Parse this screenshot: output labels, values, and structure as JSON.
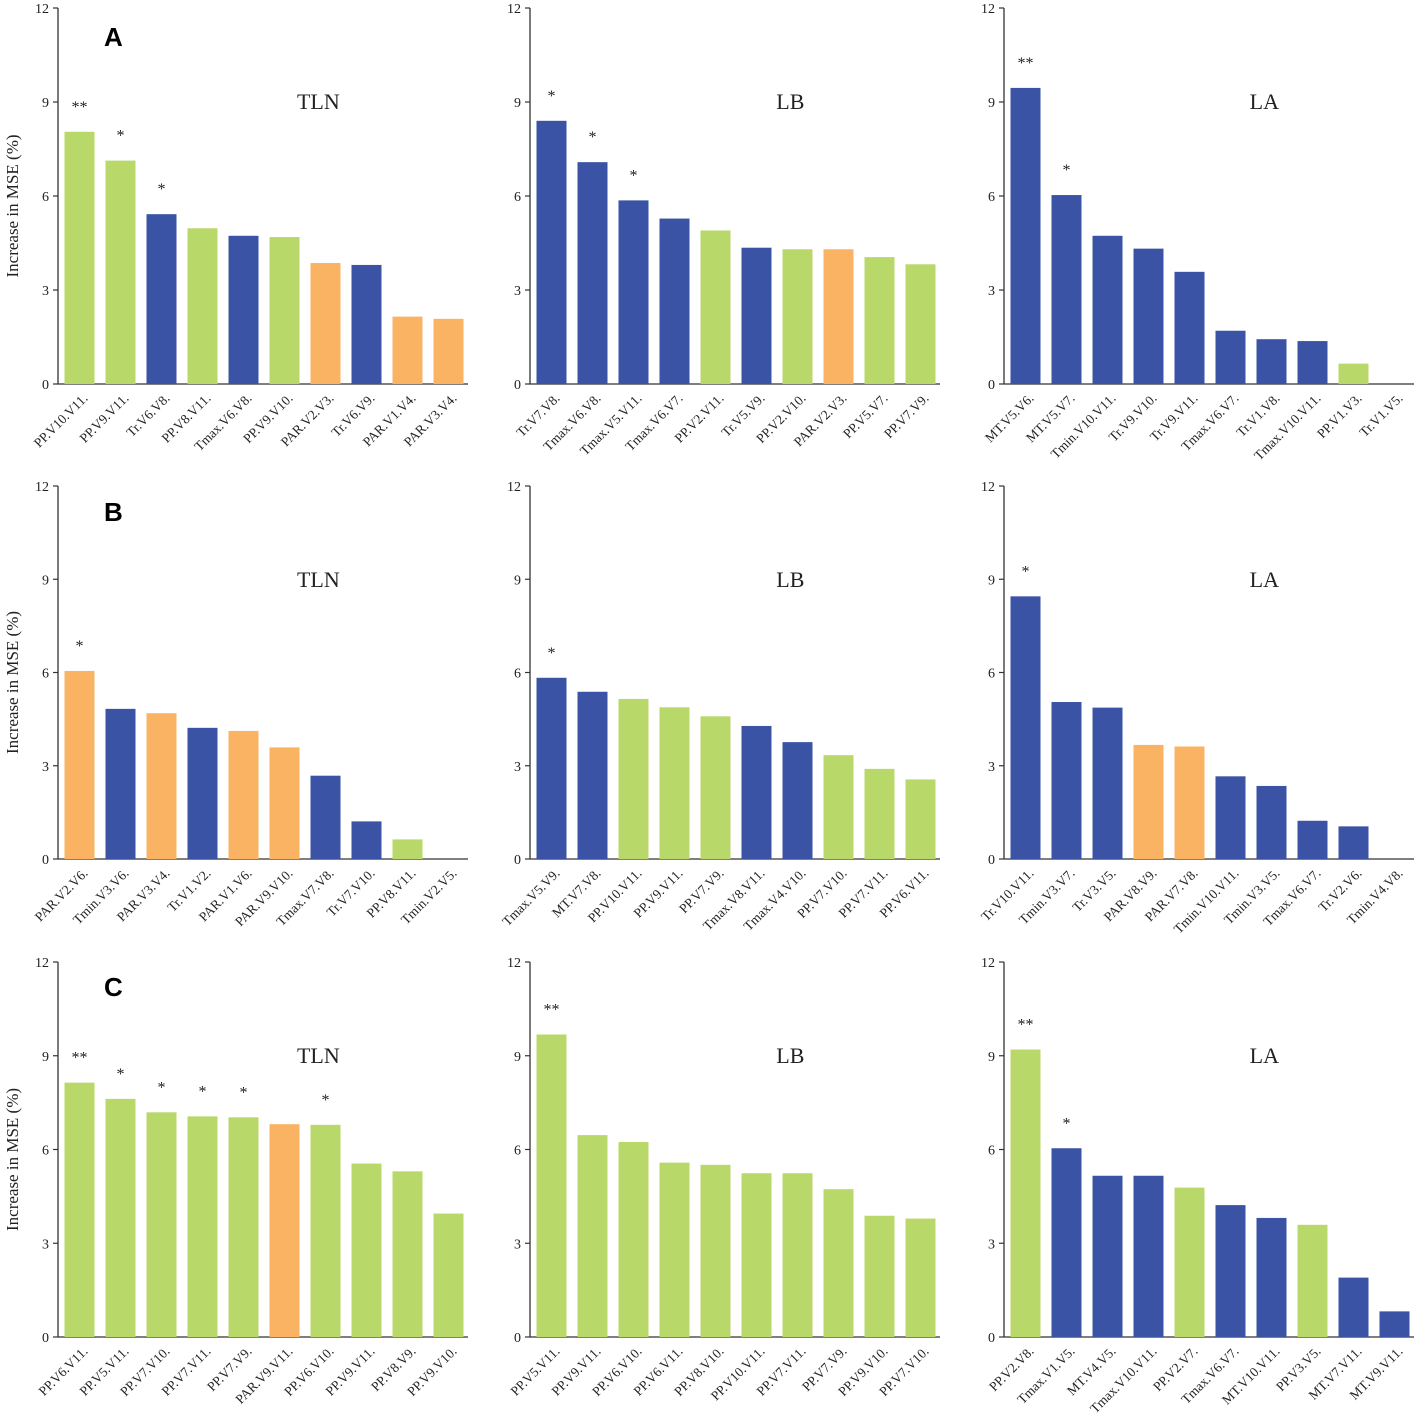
{
  "colors": {
    "green": "#b8d86a",
    "blue": "#3a53a4",
    "orange": "#f9b363"
  },
  "figure": {
    "ylabel": "Increase in MSE (%)",
    "row_labels": [
      "A",
      "B",
      "C"
    ]
  },
  "chart_data": [
    {
      "type": "bar",
      "row": "A",
      "title": "TLN",
      "ylabel": "Increase in MSE (%)",
      "ylim": [
        0,
        12
      ],
      "yticks": [
        0,
        3,
        6,
        9,
        12
      ],
      "categories": [
        "PP.V10.V11.",
        "PP.V9.V11.",
        "Tr.V6.V8.",
        "PP.V8.V11.",
        "Tmax.V6.V8.",
        "PP.V9.V10.",
        "PAR.V2.V3.",
        "Tr.V6.V9.",
        "PAR.V1.V4.",
        "PAR.V3.V4."
      ],
      "values": [
        8.05,
        7.13,
        5.42,
        4.97,
        4.73,
        4.69,
        3.86,
        3.8,
        2.15,
        2.08
      ],
      "colors": [
        "green",
        "green",
        "blue",
        "green",
        "blue",
        "green",
        "orange",
        "blue",
        "orange",
        "orange"
      ],
      "significance": [
        "**",
        "*",
        "*",
        "",
        "",
        "",
        "",
        "",
        "",
        ""
      ]
    },
    {
      "type": "bar",
      "row": "A",
      "title": "LB",
      "ylabel": "",
      "ylim": [
        0,
        12
      ],
      "yticks": [
        0,
        3,
        6,
        9,
        12
      ],
      "categories": [
        "Tr.V7.V8.",
        "Tmax.V6.V8.",
        "Tmax.V5.V11.",
        "Tmax.V6.V7.",
        "PP.V2.V11.",
        "Tr.V5.V9.",
        "PP.V2.V10.",
        "PAR.V2.V3.",
        "PP.V5.V7.",
        "PP.V7.V9."
      ],
      "values": [
        8.4,
        7.08,
        5.86,
        5.28,
        4.9,
        4.35,
        4.3,
        4.3,
        4.05,
        3.82
      ],
      "colors": [
        "blue",
        "blue",
        "blue",
        "blue",
        "green",
        "blue",
        "green",
        "orange",
        "green",
        "green"
      ],
      "significance": [
        "*",
        "*",
        "*",
        "",
        "",
        "",
        "",
        "",
        "",
        ""
      ]
    },
    {
      "type": "bar",
      "row": "A",
      "title": "LA",
      "ylabel": "",
      "ylim": [
        0,
        12
      ],
      "yticks": [
        0,
        3,
        6,
        9,
        12
      ],
      "categories": [
        "MT.V5.V6.",
        "MT.V5.V7.",
        "Tmin.V10.V11.",
        "Tr.V9.V10.",
        "Tr.V9.V11.",
        "Tmax.V6.V7.",
        "Tr.V1.V8.",
        "Tmax.V10.V11.",
        "PP.V1.V3.",
        "Tr.V1.V5."
      ],
      "values": [
        9.45,
        6.03,
        4.73,
        4.32,
        3.58,
        1.7,
        1.43,
        1.37,
        0.65,
        0.0
      ],
      "colors": [
        "blue",
        "blue",
        "blue",
        "blue",
        "blue",
        "blue",
        "blue",
        "blue",
        "green",
        "blue"
      ],
      "significance": [
        "**",
        "*",
        "",
        "",
        "",
        "",
        "",
        "",
        "",
        ""
      ]
    },
    {
      "type": "bar",
      "row": "B",
      "title": "TLN",
      "ylabel": "Increase in MSE (%)",
      "ylim": [
        0,
        12
      ],
      "yticks": [
        0,
        3,
        6,
        9,
        12
      ],
      "categories": [
        "PAR.V2.V6.",
        "Tmin.V3.V6.",
        "PAR.V3.V4.",
        "Tr.V1.V2.",
        "PAR.V1.V6.",
        "PAR.V9.V10.",
        "Tmax.V7.V8.",
        "Tr.V7.V10.",
        "PP.V8.V11.",
        "Tmin.V2.V5."
      ],
      "values": [
        6.05,
        4.83,
        4.69,
        4.22,
        4.12,
        3.59,
        2.68,
        1.21,
        0.63,
        0.0
      ],
      "colors": [
        "orange",
        "blue",
        "orange",
        "blue",
        "orange",
        "orange",
        "blue",
        "blue",
        "green",
        "blue"
      ],
      "significance": [
        "*",
        "",
        "",
        "",
        "",
        "",
        "",
        "",
        "",
        ""
      ]
    },
    {
      "type": "bar",
      "row": "B",
      "title": "LB",
      "ylabel": "",
      "ylim": [
        0,
        12
      ],
      "yticks": [
        0,
        3,
        6,
        9,
        12
      ],
      "categories": [
        "Tmax.V5.V9.",
        "MT.V7.V8.",
        "PP.V10.V11.",
        "PP.V9.V11.",
        "PP.V7.V9.",
        "Tmax.V8.V11.",
        "Tmax.V4.V10.",
        "PP.V7.V10.",
        "PP.V7.V11.",
        "PP.V6.V11."
      ],
      "values": [
        5.83,
        5.38,
        5.15,
        4.88,
        4.59,
        4.28,
        3.76,
        3.34,
        2.9,
        2.56
      ],
      "colors": [
        "blue",
        "blue",
        "green",
        "green",
        "green",
        "blue",
        "blue",
        "green",
        "green",
        "green"
      ],
      "significance": [
        "*",
        "",
        "",
        "",
        "",
        "",
        "",
        "",
        "",
        ""
      ]
    },
    {
      "type": "bar",
      "row": "B",
      "title": "LA",
      "ylabel": "",
      "ylim": [
        0,
        12
      ],
      "yticks": [
        0,
        3,
        6,
        9,
        12
      ],
      "categories": [
        "Tr.V10.V11.",
        "Tmin.V3.V7.",
        "Tr.V3.V5.",
        "PAR.V8.V9.",
        "PAR.V7.V8.",
        "Tmin.V10.V11.",
        "Tmin.V3.V5.",
        "Tmax.V6.V7.",
        "Tr.V2.V6.",
        "Tmin.V4.V8."
      ],
      "values": [
        8.45,
        5.05,
        4.87,
        3.67,
        3.62,
        2.66,
        2.35,
        1.23,
        1.05,
        0.0
      ],
      "colors": [
        "blue",
        "blue",
        "blue",
        "orange",
        "orange",
        "blue",
        "blue",
        "blue",
        "blue",
        "blue"
      ],
      "significance": [
        "*",
        "",
        "",
        "",
        "",
        "",
        "",
        "",
        "",
        ""
      ]
    },
    {
      "type": "bar",
      "row": "C",
      "title": "TLN",
      "ylabel": "Increase in MSE (%)",
      "ylim": [
        0,
        12
      ],
      "yticks": [
        0,
        3,
        6,
        9,
        12
      ],
      "categories": [
        "PP.V6.V11.",
        "PP.V5.V11.",
        "PP.V7.V10.",
        "PP.V7.V11.",
        "PP.V7.V9.",
        "PAR.V9.V11.",
        "PP.V6.V10.",
        "PP.V9.V11.",
        "PP.V8.V9.",
        "PP.V9.V10."
      ],
      "values": [
        8.14,
        7.62,
        7.19,
        7.06,
        7.03,
        6.81,
        6.79,
        5.55,
        5.3,
        3.95
      ],
      "colors": [
        "green",
        "green",
        "green",
        "green",
        "green",
        "orange",
        "green",
        "green",
        "green",
        "green"
      ],
      "significance": [
        "**",
        "*",
        "*",
        "*",
        "*",
        "",
        "*",
        "",
        "",
        ""
      ]
    },
    {
      "type": "bar",
      "row": "C",
      "title": "LB",
      "ylabel": "",
      "ylim": [
        0,
        12
      ],
      "yticks": [
        0,
        3,
        6,
        9,
        12
      ],
      "categories": [
        "PP.V5.V11.",
        "PP.V9.V11.",
        "PP.V6.V10.",
        "PP.V6.V11.",
        "PP.V8.V10.",
        "PP.V10.V11.",
        "PP.V7.V11.",
        "PP.V7.V9.",
        "PP.V9.V10.",
        "PP.V7.V10."
      ],
      "values": [
        9.68,
        6.46,
        6.24,
        5.58,
        5.51,
        5.24,
        5.24,
        4.73,
        3.88,
        3.79
      ],
      "colors": [
        "green",
        "green",
        "green",
        "green",
        "green",
        "green",
        "green",
        "green",
        "green",
        "green"
      ],
      "significance": [
        "**",
        "",
        "",
        "",
        "",
        "",
        "",
        "",
        "",
        ""
      ]
    },
    {
      "type": "bar",
      "row": "C",
      "title": "LA",
      "ylabel": "",
      "ylim": [
        0,
        12
      ],
      "yticks": [
        0,
        3,
        6,
        9,
        12
      ],
      "categories": [
        "PP.V2.V8.",
        "Tmax.V1.V5.",
        "MT.V4.V5.",
        "Tmax.V10.V11.",
        "PP.V2.V7.",
        "Tmax.V6.V7.",
        "MT.V10.V11.",
        "PP.V3.V5.",
        "MT.V7.V11.",
        "MT.V9.V11."
      ],
      "values": [
        9.2,
        6.04,
        5.16,
        5.16,
        4.78,
        4.22,
        3.81,
        3.59,
        1.9,
        0.82
      ],
      "colors": [
        "green",
        "blue",
        "blue",
        "blue",
        "green",
        "blue",
        "blue",
        "green",
        "blue",
        "blue"
      ],
      "significance": [
        "**",
        "*",
        "",
        "",
        "",
        "",
        "",
        "",
        "",
        ""
      ]
    }
  ]
}
